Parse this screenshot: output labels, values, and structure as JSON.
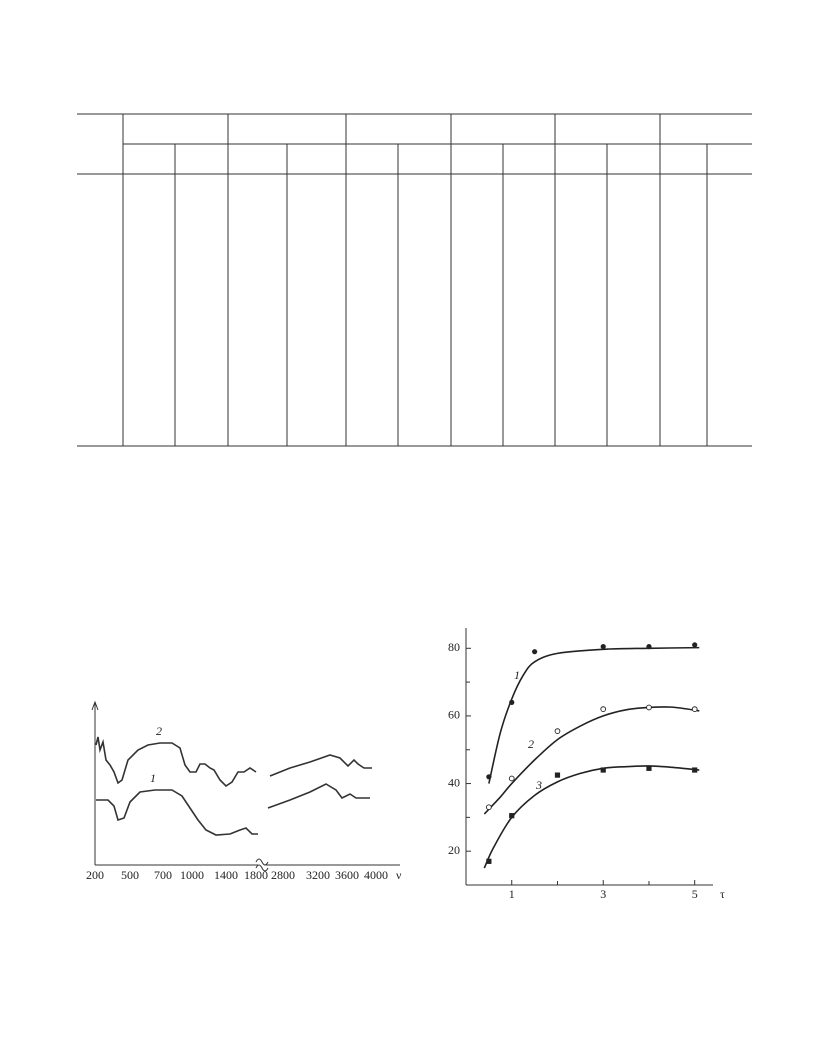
{
  "figures": [
    {
      "x_labels": [
        "200",
        "500",
        "700",
        "1000",
        "1400",
        "1800",
        "2800",
        "3200",
        "3600",
        "4000"
      ],
      "axis_label": "ν",
      "curve_labels": [
        "1",
        "2"
      ]
    }
  ],
  "chart_data": {
    "type": "scatter",
    "xlabel": "τ",
    "xlim": [
      0,
      5.4
    ],
    "ylim": [
      10,
      86
    ],
    "xticks": [
      1,
      3,
      5
    ],
    "yticks": [
      20,
      40,
      60,
      80
    ],
    "minor_xticks": [
      2,
      4
    ],
    "minor_yticks": [
      30,
      50,
      70
    ],
    "series": [
      {
        "name": "1",
        "color": "#222",
        "marker": "filled-circle",
        "x": [
          0.5,
          1,
          1.5,
          3,
          4,
          5
        ],
        "values": [
          42,
          64,
          79,
          80.5,
          80.5,
          81
        ],
        "fit": {
          "x": [
            0.5,
            0.75,
            1,
            1.25,
            1.5,
            2,
            3,
            4,
            5.1
          ],
          "y": [
            40,
            55,
            65,
            72,
            76,
            78.5,
            79.7,
            80,
            80.2
          ]
        }
      },
      {
        "name": "2",
        "color": "#222",
        "marker": "open-circle",
        "x": [
          0.5,
          1,
          2,
          3,
          4,
          5
        ],
        "values": [
          33,
          41.5,
          55.5,
          62,
          62.5,
          62
        ],
        "fit": {
          "x": [
            0.4,
            0.75,
            1,
            1.5,
            2,
            2.5,
            3,
            3.5,
            4,
            4.5,
            5.1
          ],
          "y": [
            31,
            36,
            40,
            47,
            53,
            57,
            60,
            61.8,
            62.5,
            62.6,
            61.5
          ]
        }
      },
      {
        "name": "3",
        "color": "#222",
        "marker": "filled-square",
        "x": [
          0.5,
          1,
          2,
          3,
          4,
          5
        ],
        "values": [
          17,
          30.5,
          42.5,
          44,
          44.5,
          44
        ],
        "fit": {
          "x": [
            0.4,
            0.6,
            1,
            1.5,
            2,
            2.5,
            3,
            3.5,
            4,
            4.5,
            5.1
          ],
          "y": [
            15,
            21,
            30,
            36.5,
            40.5,
            43,
            44.5,
            45,
            45.2,
            44.8,
            44
          ]
        }
      }
    ]
  }
}
